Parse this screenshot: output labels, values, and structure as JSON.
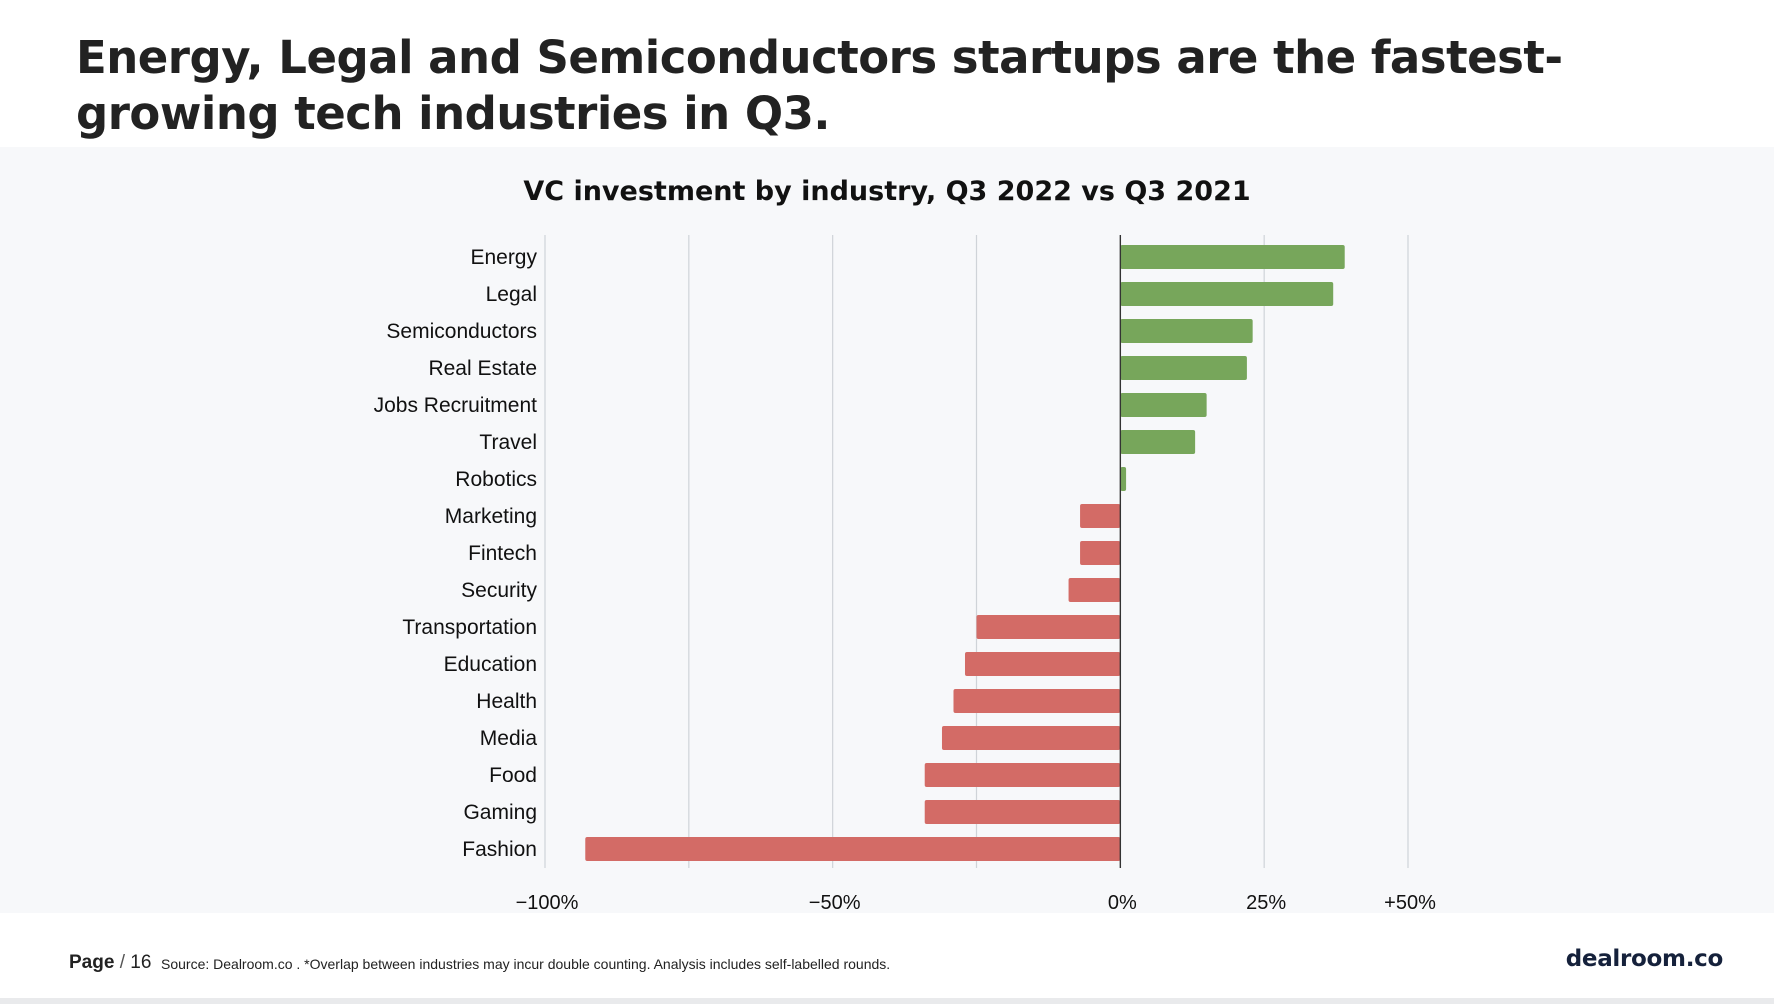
{
  "headline": "Energy, Legal and Semiconductors startups are the fastest-growing tech industries in Q3.",
  "footer": {
    "page_label": "Page",
    "separator": "/",
    "page_number": "16",
    "source": "Source: Dealroom.co . *Overlap between industries may incur double counting. Analysis includes self-labelled rounds.",
    "brand": "dealroom.co"
  },
  "colors": {
    "positive": "#77a65b",
    "negative": "#d36b66",
    "panel": "#f7f8fa"
  },
  "chart_data": {
    "type": "bar",
    "orientation": "horizontal",
    "title": "VC investment by industry, Q3 2022 vs Q3 2021",
    "xlabel": "",
    "ylabel": "",
    "xlim": [
      -100,
      50
    ],
    "grid": true,
    "legend": "none",
    "ticks": [
      {
        "value": -100,
        "label": "−100%"
      },
      {
        "value": -75,
        "label": ""
      },
      {
        "value": -50,
        "label": "−50%"
      },
      {
        "value": -25,
        "label": ""
      },
      {
        "value": 0,
        "label": "0%"
      },
      {
        "value": 25,
        "label": "25%"
      },
      {
        "value": 50,
        "label": "+50%"
      }
    ],
    "categories": [
      "Energy",
      "Legal",
      "Semiconductors",
      "Real Estate",
      "Jobs Recruitment",
      "Travel",
      "Robotics",
      "Marketing",
      "Fintech",
      "Security",
      "Transportation",
      "Education",
      "Health",
      "Media",
      "Food",
      "Gaming",
      "Fashion"
    ],
    "values": [
      39,
      37,
      23,
      22,
      15,
      13,
      1,
      -7,
      -7,
      -9,
      -25,
      -27,
      -29,
      -31,
      -34,
      -34,
      -93
    ]
  }
}
